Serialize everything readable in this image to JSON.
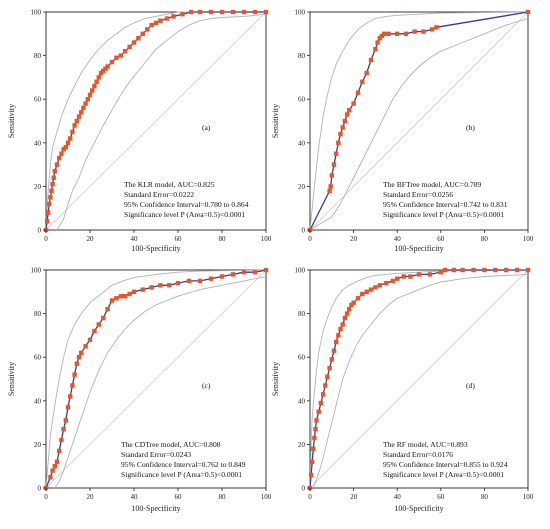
{
  "colors": {
    "roc": "#2a3f9e",
    "marker": "#e8552b",
    "ci": "#b0b0c0",
    "diag": "#c8c8c8",
    "axis": "#222222"
  },
  "chart_data": [
    {
      "type": "line",
      "panel_label": "(a)",
      "xlabel": "100-Specificity",
      "ylabel": "Sensitivity",
      "xlim": [
        0,
        100
      ],
      "ylim": [
        0,
        100
      ],
      "ticks": [
        "0",
        "20",
        "40",
        "60",
        "80",
        "100"
      ],
      "annotations": [
        "The KLR model, AUC=0.825",
        "Standard Error=0.0222",
        "95% Confidence Interval=0.780 to 0.864",
        "Significance level P (Area=0.5)<0.0001"
      ],
      "roc": [
        [
          0,
          0
        ],
        [
          0.5,
          4
        ],
        [
          1,
          8
        ],
        [
          1.5,
          12
        ],
        [
          2,
          15
        ],
        [
          2.5,
          18
        ],
        [
          3,
          21
        ],
        [
          3.5,
          24
        ],
        [
          4,
          27
        ],
        [
          5,
          30
        ],
        [
          6,
          33
        ],
        [
          7,
          35
        ],
        [
          8,
          37
        ],
        [
          9,
          38
        ],
        [
          10,
          40
        ],
        [
          11,
          42
        ],
        [
          12,
          45
        ],
        [
          13,
          48
        ],
        [
          14,
          50
        ],
        [
          15,
          52
        ],
        [
          16,
          54
        ],
        [
          17,
          56
        ],
        [
          18,
          58
        ],
        [
          19,
          60
        ],
        [
          20,
          62
        ],
        [
          21,
          64
        ],
        [
          22,
          66
        ],
        [
          23,
          68
        ],
        [
          24,
          70
        ],
        [
          25,
          72
        ],
        [
          26,
          73
        ],
        [
          27,
          74
        ],
        [
          28,
          75
        ],
        [
          30,
          77
        ],
        [
          32,
          79
        ],
        [
          34,
          80
        ],
        [
          36,
          82
        ],
        [
          38,
          84
        ],
        [
          40,
          86
        ],
        [
          42,
          88
        ],
        [
          44,
          90
        ],
        [
          46,
          92
        ],
        [
          48,
          94
        ],
        [
          50,
          95
        ],
        [
          52,
          96
        ],
        [
          55,
          97
        ],
        [
          58,
          98
        ],
        [
          62,
          99
        ],
        [
          66,
          100
        ],
        [
          70,
          100
        ],
        [
          75,
          100
        ],
        [
          80,
          100
        ],
        [
          85,
          100
        ],
        [
          90,
          100
        ],
        [
          95,
          100
        ],
        [
          100,
          100
        ]
      ],
      "ci_upper": [
        [
          0,
          0
        ],
        [
          1,
          18
        ],
        [
          2,
          30
        ],
        [
          3,
          38
        ],
        [
          5,
          45
        ],
        [
          7,
          52
        ],
        [
          10,
          60
        ],
        [
          13,
          66
        ],
        [
          16,
          72
        ],
        [
          20,
          78
        ],
        [
          24,
          83
        ],
        [
          28,
          87
        ],
        [
          32,
          90
        ],
        [
          36,
          93
        ],
        [
          40,
          95
        ],
        [
          45,
          97
        ],
        [
          50,
          98
        ],
        [
          55,
          99
        ],
        [
          60,
          100
        ],
        [
          70,
          100
        ],
        [
          100,
          100
        ]
      ],
      "ci_lower": [
        [
          5,
          0
        ],
        [
          8,
          5
        ],
        [
          10,
          12
        ],
        [
          12,
          18
        ],
        [
          15,
          24
        ],
        [
          18,
          32
        ],
        [
          22,
          40
        ],
        [
          26,
          48
        ],
        [
          30,
          55
        ],
        [
          34,
          62
        ],
        [
          38,
          68
        ],
        [
          42,
          73
        ],
        [
          46,
          78
        ],
        [
          50,
          83
        ],
        [
          55,
          87
        ],
        [
          60,
          91
        ],
        [
          65,
          94
        ],
        [
          70,
          96
        ],
        [
          75,
          97
        ],
        [
          80,
          97.5
        ],
        [
          90,
          98
        ],
        [
          100,
          99
        ]
      ]
    },
    {
      "type": "line",
      "panel_label": "(b)",
      "xlabel": "100-Specificity",
      "ylabel": "Sensitivity",
      "xlim": [
        0,
        100
      ],
      "ylim": [
        0,
        100
      ],
      "ticks": [
        "0",
        "20",
        "40",
        "60",
        "80",
        "100"
      ],
      "annotations": [
        "The BFTree model, AUC=0.789",
        "Standard Error=0.0256",
        "95% Confidence Interval=0.742 to 0.831",
        "Significance level P (Area=0.5)<0.0001"
      ],
      "roc": [
        [
          0,
          0
        ],
        [
          9,
          18
        ],
        [
          9.5,
          20
        ],
        [
          10,
          25
        ],
        [
          11,
          30
        ],
        [
          12,
          35
        ],
        [
          13,
          40
        ],
        [
          14,
          44
        ],
        [
          15,
          47
        ],
        [
          16,
          50
        ],
        [
          17,
          53
        ],
        [
          18,
          55
        ],
        [
          20,
          58
        ],
        [
          22,
          63
        ],
        [
          24,
          68
        ],
        [
          26,
          72
        ],
        [
          28,
          78
        ],
        [
          30,
          83
        ],
        [
          31,
          86
        ],
        [
          32,
          88
        ],
        [
          33,
          89
        ],
        [
          34,
          90
        ],
        [
          36,
          90
        ],
        [
          40,
          90
        ],
        [
          44,
          90
        ],
        [
          48,
          91
        ],
        [
          52,
          91
        ],
        [
          56,
          92
        ],
        [
          58,
          93
        ],
        [
          100,
          100
        ]
      ],
      "ci_upper": [
        [
          0,
          0
        ],
        [
          2,
          20
        ],
        [
          4,
          38
        ],
        [
          6,
          52
        ],
        [
          8,
          62
        ],
        [
          10,
          70
        ],
        [
          12,
          76
        ],
        [
          15,
          82
        ],
        [
          18,
          87
        ],
        [
          22,
          92
        ],
        [
          26,
          95
        ],
        [
          30,
          97
        ],
        [
          35,
          98
        ],
        [
          40,
          98.5
        ],
        [
          50,
          99
        ],
        [
          60,
          99.5
        ],
        [
          100,
          100
        ]
      ],
      "ci_lower": [
        [
          0,
          0
        ],
        [
          10,
          6
        ],
        [
          14,
          12
        ],
        [
          18,
          20
        ],
        [
          22,
          28
        ],
        [
          26,
          36
        ],
        [
          30,
          44
        ],
        [
          34,
          52
        ],
        [
          38,
          60
        ],
        [
          42,
          66
        ],
        [
          46,
          71
        ],
        [
          50,
          75
        ],
        [
          55,
          79
        ],
        [
          60,
          82
        ],
        [
          70,
          86
        ],
        [
          80,
          90
        ],
        [
          90,
          94
        ],
        [
          100,
          97
        ]
      ]
    },
    {
      "type": "line",
      "panel_label": "(c)",
      "xlabel": "100-Specificity",
      "ylabel": "Sensitivity",
      "xlim": [
        0,
        100
      ],
      "ylim": [
        0,
        100
      ],
      "ticks": [
        "0",
        "20",
        "40",
        "60",
        "80",
        "100"
      ],
      "annotations": [
        "The CDTree model, AUC=0.808",
        "Standard Error=0.0243",
        "95% Confidence Interval=0.762 to 0.849",
        "Significance level P (Area=0.5)<0.0001"
      ],
      "roc": [
        [
          0,
          0
        ],
        [
          2,
          5
        ],
        [
          3,
          8
        ],
        [
          4,
          10
        ],
        [
          5,
          12
        ],
        [
          6,
          17
        ],
        [
          7,
          22
        ],
        [
          8,
          27
        ],
        [
          9,
          31
        ],
        [
          10,
          37
        ],
        [
          11,
          42
        ],
        [
          12,
          47
        ],
        [
          13,
          52
        ],
        [
          14,
          57
        ],
        [
          15,
          60
        ],
        [
          16,
          62
        ],
        [
          18,
          65
        ],
        [
          20,
          68
        ],
        [
          22,
          72
        ],
        [
          24,
          75
        ],
        [
          26,
          78
        ],
        [
          28,
          82
        ],
        [
          30,
          86
        ],
        [
          32,
          87
        ],
        [
          34,
          88
        ],
        [
          36,
          88
        ],
        [
          38,
          89
        ],
        [
          40,
          90
        ],
        [
          44,
          91
        ],
        [
          48,
          92
        ],
        [
          52,
          93
        ],
        [
          56,
          93
        ],
        [
          60,
          94
        ],
        [
          65,
          95
        ],
        [
          70,
          95
        ],
        [
          75,
          96
        ],
        [
          80,
          97
        ],
        [
          85,
          98
        ],
        [
          90,
          99
        ],
        [
          95,
          99
        ],
        [
          100,
          100
        ]
      ],
      "ci_upper": [
        [
          0,
          0
        ],
        [
          1,
          12
        ],
        [
          2,
          24
        ],
        [
          4,
          38
        ],
        [
          6,
          50
        ],
        [
          8,
          60
        ],
        [
          10,
          68
        ],
        [
          13,
          75
        ],
        [
          16,
          80
        ],
        [
          20,
          85
        ],
        [
          25,
          89
        ],
        [
          30,
          93
        ],
        [
          35,
          95
        ],
        [
          40,
          96.5
        ],
        [
          50,
          98
        ],
        [
          60,
          99
        ],
        [
          70,
          99.5
        ],
        [
          100,
          100
        ]
      ],
      "ci_lower": [
        [
          4,
          0
        ],
        [
          6,
          3
        ],
        [
          8,
          8
        ],
        [
          10,
          14
        ],
        [
          12,
          20
        ],
        [
          14,
          26
        ],
        [
          16,
          32
        ],
        [
          18,
          38
        ],
        [
          20,
          44
        ],
        [
          24,
          54
        ],
        [
          28,
          62
        ],
        [
          32,
          68
        ],
        [
          36,
          73
        ],
        [
          40,
          77
        ],
        [
          45,
          81
        ],
        [
          50,
          84
        ],
        [
          55,
          86
        ],
        [
          60,
          88
        ],
        [
          70,
          91
        ],
        [
          80,
          93
        ],
        [
          90,
          95
        ],
        [
          100,
          97
        ]
      ]
    },
    {
      "type": "line",
      "panel_label": "(d)",
      "xlabel": "100-Specificity",
      "ylabel": "Sensitivity",
      "xlim": [
        0,
        100
      ],
      "ylim": [
        0,
        100
      ],
      "ticks": [
        "0",
        "20",
        "40",
        "60",
        "80",
        "100"
      ],
      "annotations": [
        "The RF model, AUC=0.893",
        "Standard Error=0.0176",
        "95% Confidence Interval=0.855 to 0.924",
        "Significance level P (Area=0.5)<0.0001"
      ],
      "roc": [
        [
          0,
          0
        ],
        [
          0.5,
          6
        ],
        [
          1,
          12
        ],
        [
          1.5,
          18
        ],
        [
          2,
          23
        ],
        [
          2.5,
          27
        ],
        [
          3,
          31
        ],
        [
          4,
          35
        ],
        [
          5,
          39
        ],
        [
          6,
          43
        ],
        [
          7,
          47
        ],
        [
          8,
          51
        ],
        [
          9,
          55
        ],
        [
          10,
          59
        ],
        [
          11,
          63
        ],
        [
          12,
          67
        ],
        [
          13,
          70
        ],
        [
          14,
          73
        ],
        [
          15,
          75
        ],
        [
          16,
          78
        ],
        [
          17,
          80
        ],
        [
          18,
          82
        ],
        [
          19,
          84
        ],
        [
          20,
          85
        ],
        [
          22,
          87
        ],
        [
          24,
          89
        ],
        [
          26,
          90
        ],
        [
          28,
          91
        ],
        [
          30,
          92
        ],
        [
          32,
          93
        ],
        [
          35,
          94
        ],
        [
          38,
          95
        ],
        [
          40,
          96
        ],
        [
          43,
          97
        ],
        [
          46,
          97
        ],
        [
          50,
          98
        ],
        [
          55,
          98
        ],
        [
          60,
          99
        ],
        [
          62,
          100
        ],
        [
          66,
          100
        ],
        [
          70,
          100
        ],
        [
          75,
          100
        ],
        [
          80,
          100
        ],
        [
          85,
          100
        ],
        [
          90,
          100
        ],
        [
          95,
          100
        ],
        [
          100,
          100
        ]
      ],
      "ci_upper": [
        [
          0,
          0
        ],
        [
          0.5,
          20
        ],
        [
          1,
          32
        ],
        [
          2,
          44
        ],
        [
          3,
          54
        ],
        [
          4,
          62
        ],
        [
          6,
          72
        ],
        [
          8,
          78
        ],
        [
          10,
          83
        ],
        [
          12,
          87
        ],
        [
          15,
          91
        ],
        [
          18,
          93
        ],
        [
          22,
          95
        ],
        [
          26,
          96.5
        ],
        [
          30,
          97.5
        ],
        [
          40,
          98.5
        ],
        [
          50,
          99
        ],
        [
          60,
          99.5
        ],
        [
          100,
          100
        ]
      ],
      "ci_lower": [
        [
          1.5,
          0
        ],
        [
          3,
          4
        ],
        [
          5,
          10
        ],
        [
          7,
          18
        ],
        [
          9,
          26
        ],
        [
          11,
          34
        ],
        [
          13,
          42
        ],
        [
          15,
          50
        ],
        [
          18,
          58
        ],
        [
          21,
          65
        ],
        [
          24,
          70
        ],
        [
          28,
          75
        ],
        [
          32,
          80
        ],
        [
          36,
          84
        ],
        [
          40,
          87
        ],
        [
          45,
          89
        ],
        [
          50,
          91
        ],
        [
          55,
          93
        ],
        [
          60,
          94.5
        ],
        [
          70,
          96
        ],
        [
          80,
          97
        ],
        [
          90,
          97.5
        ],
        [
          100,
          98
        ]
      ]
    }
  ]
}
